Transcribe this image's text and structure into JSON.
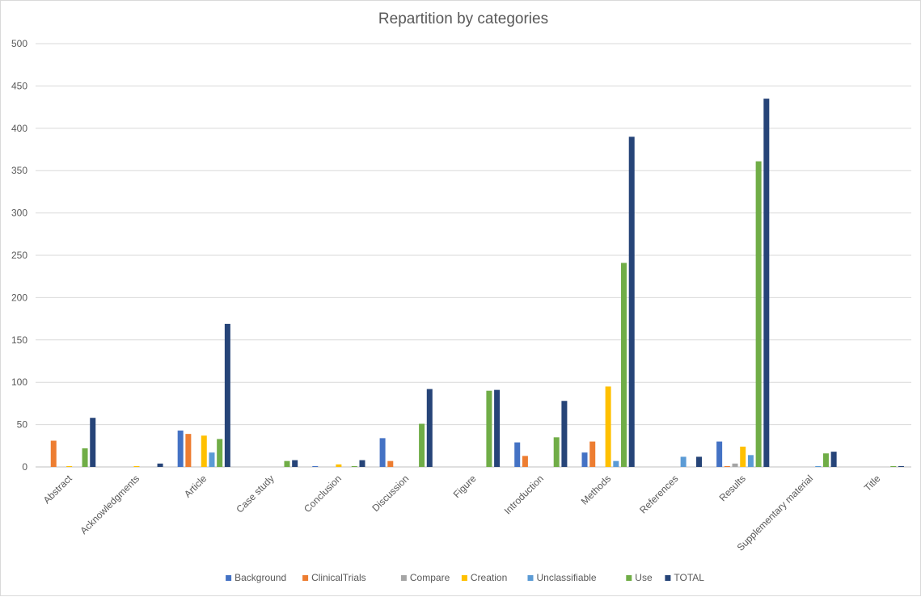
{
  "chart_data": {
    "type": "bar",
    "title": "Repartition by categories",
    "xlabel": "",
    "ylabel": "",
    "ylim": [
      0,
      500
    ],
    "yticks": [
      0,
      50,
      100,
      150,
      200,
      250,
      300,
      350,
      400,
      450,
      500
    ],
    "grid": true,
    "legend_position": "bottom",
    "categories": [
      "Abstract",
      "Acknowledgments",
      "Article",
      "Case study",
      "Conclusion",
      "Discussion",
      "Figure",
      "Introduction",
      "Methods",
      "References",
      "Results",
      "Supplementary material",
      "Title"
    ],
    "series": [
      {
        "name": "Background",
        "color": "#4472c4",
        "values": [
          0,
          0,
          43,
          0,
          1,
          34,
          0,
          29,
          17,
          0,
          30,
          0,
          0
        ]
      },
      {
        "name": "ClinicalTrials",
        "color": "#ed7d31",
        "values": [
          31,
          0,
          39,
          0,
          0,
          7,
          0,
          13,
          30,
          0,
          1,
          0,
          0
        ]
      },
      {
        "name": "Compare",
        "color": "#a5a5a5",
        "values": [
          0,
          0,
          0,
          0,
          0,
          0,
          0,
          0,
          0,
          0,
          4,
          0,
          0
        ]
      },
      {
        "name": "Creation",
        "color": "#ffc000",
        "values": [
          1,
          1,
          37,
          0,
          3,
          0,
          0,
          0,
          95,
          0,
          24,
          0,
          0
        ]
      },
      {
        "name": "Unclassifiable",
        "color": "#5b9bd5",
        "values": [
          0,
          0,
          17,
          0,
          0,
          0,
          0,
          0,
          7,
          12,
          14,
          1,
          0
        ]
      },
      {
        "name": "Use",
        "color": "#70ad47",
        "values": [
          22,
          0,
          33,
          7,
          1,
          51,
          90,
          35,
          241,
          0,
          361,
          16,
          1
        ]
      },
      {
        "name": "TOTAL",
        "color": "#264478",
        "values": [
          58,
          4,
          169,
          8,
          8,
          92,
          91,
          78,
          390,
          12,
          435,
          18,
          1
        ]
      }
    ]
  }
}
